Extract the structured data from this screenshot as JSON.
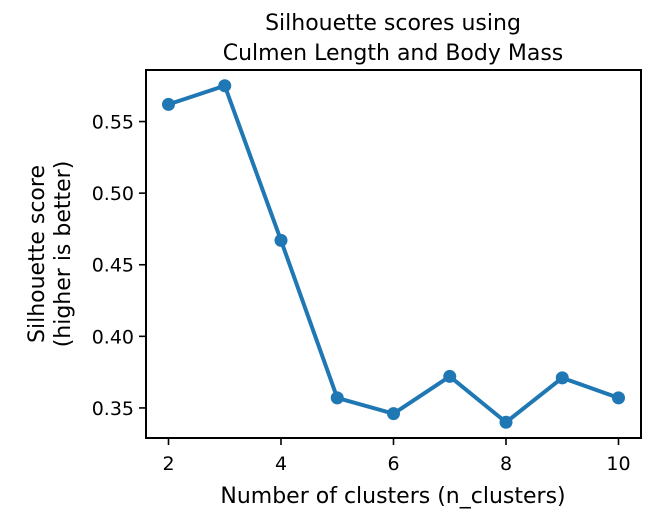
{
  "chart_data": {
    "type": "line",
    "title_lines": [
      "Silhouette scores using",
      "Culmen Length and Body Mass"
    ],
    "xlabel": "Number of clusters (n_clusters)",
    "ylabel_lines": [
      "Silhouette score",
      "(higher is better)"
    ],
    "x": [
      2,
      3,
      4,
      5,
      6,
      7,
      8,
      9,
      10
    ],
    "series": [
      {
        "values": [
          0.562,
          0.575,
          0.467,
          0.357,
          0.346,
          0.372,
          0.34,
          0.371,
          0.357
        ],
        "color": "#1f77b4"
      }
    ],
    "xlim": [
      1.6,
      10.4
    ],
    "ylim": [
      0.329,
      0.586
    ],
    "xticks": [
      2,
      4,
      6,
      8,
      10
    ],
    "xtick_labels": [
      "2",
      "4",
      "6",
      "8",
      "10"
    ],
    "yticks": [
      0.35,
      0.4,
      0.45,
      0.5,
      0.55
    ],
    "ytick_labels": [
      "0.35",
      "0.40",
      "0.45",
      "0.50",
      "0.55"
    ],
    "grid": false,
    "legend": false,
    "marker": "circle"
  }
}
